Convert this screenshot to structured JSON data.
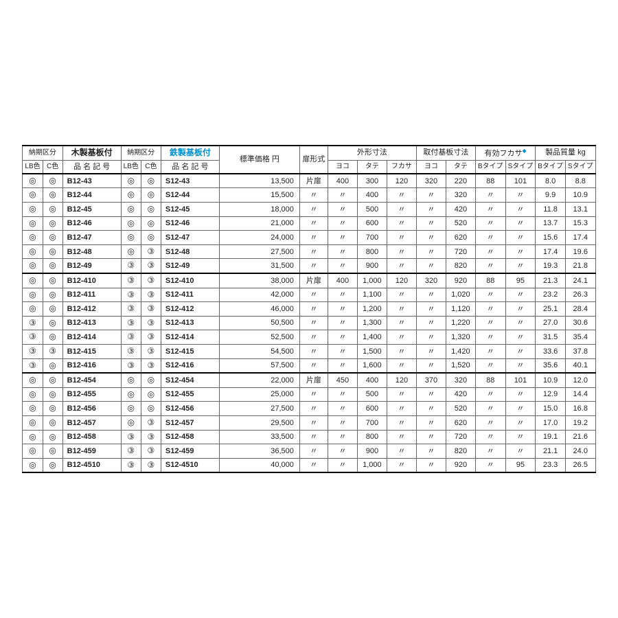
{
  "marks": {
    "dbl": "◎",
    "c3": "③",
    "ditto": "〃"
  },
  "headers": {
    "delivery": "納期区分",
    "wood": "木製基板付",
    "steel": "鉄製基板付",
    "lb": "LB色",
    "c": "C色",
    "model": "品 名 記 号",
    "price": "標準価格 円",
    "door": "扉形式",
    "outer": "外形寸法",
    "mount": "取付基板寸法",
    "effDepth": "有効フカサ",
    "mass": "製品質量 kg",
    "yoko": "ヨコ",
    "tate": "タテ",
    "fukasa": "フカサ",
    "btype": "Bタイプ",
    "stype": "Sタイプ",
    "single": "片扉"
  },
  "rows": [
    {
      "g": 1,
      "lb1": "◎",
      "c1": "◎",
      "b": "B12-43",
      "lb2": "◎",
      "c2": "◎",
      "s": "S12-43",
      "price": "13,500",
      "door": "片扉",
      "oy": "400",
      "ot": "300",
      "of": "120",
      "my": "320",
      "mt": "220",
      "eb": "88",
      "es": "101",
      "mb": "8.0",
      "ms": "8.8"
    },
    {
      "g": 1,
      "lb1": "◎",
      "c1": "◎",
      "b": "B12-44",
      "lb2": "◎",
      "c2": "◎",
      "s": "S12-44",
      "price": "15,500",
      "door": "〃",
      "oy": "〃",
      "ot": "400",
      "of": "〃",
      "my": "〃",
      "mt": "320",
      "eb": "〃",
      "es": "〃",
      "mb": "9.9",
      "ms": "10.9"
    },
    {
      "g": 1,
      "lb1": "◎",
      "c1": "◎",
      "b": "B12-45",
      "lb2": "◎",
      "c2": "◎",
      "s": "S12-45",
      "price": "18,000",
      "door": "〃",
      "oy": "〃",
      "ot": "500",
      "of": "〃",
      "my": "〃",
      "mt": "420",
      "eb": "〃",
      "es": "〃",
      "mb": "11.8",
      "ms": "13.1"
    },
    {
      "g": 1,
      "lb1": "◎",
      "c1": "◎",
      "b": "B12-46",
      "lb2": "◎",
      "c2": "◎",
      "s": "S12-46",
      "price": "21,000",
      "door": "〃",
      "oy": "〃",
      "ot": "600",
      "of": "〃",
      "my": "〃",
      "mt": "520",
      "eb": "〃",
      "es": "〃",
      "mb": "13.7",
      "ms": "15.3"
    },
    {
      "g": 1,
      "lb1": "◎",
      "c1": "◎",
      "b": "B12-47",
      "lb2": "◎",
      "c2": "◎",
      "s": "S12-47",
      "price": "24,000",
      "door": "〃",
      "oy": "〃",
      "ot": "700",
      "of": "〃",
      "my": "〃",
      "mt": "620",
      "eb": "〃",
      "es": "〃",
      "mb": "15.6",
      "ms": "17.4"
    },
    {
      "g": 1,
      "lb1": "◎",
      "c1": "◎",
      "b": "B12-48",
      "lb2": "◎",
      "c2": "③",
      "s": "S12-48",
      "price": "27,500",
      "door": "〃",
      "oy": "〃",
      "ot": "800",
      "of": "〃",
      "my": "〃",
      "mt": "720",
      "eb": "〃",
      "es": "〃",
      "mb": "17.4",
      "ms": "19.6"
    },
    {
      "g": 1,
      "lb1": "◎",
      "c1": "◎",
      "b": "B12-49",
      "lb2": "③",
      "c2": "③",
      "s": "S12-49",
      "price": "31,500",
      "door": "〃",
      "oy": "〃",
      "ot": "900",
      "of": "〃",
      "my": "〃",
      "mt": "820",
      "eb": "〃",
      "es": "〃",
      "mb": "19.3",
      "ms": "21.8"
    },
    {
      "g": 2,
      "lb1": "◎",
      "c1": "◎",
      "b": "B12-410",
      "lb2": "③",
      "c2": "③",
      "s": "S12-410",
      "price": "38,000",
      "door": "片扉",
      "oy": "400",
      "ot": "1,000",
      "of": "120",
      "my": "320",
      "mt": "920",
      "eb": "88",
      "es": "95",
      "mb": "21.3",
      "ms": "24.1"
    },
    {
      "g": 2,
      "lb1": "◎",
      "c1": "◎",
      "b": "B12-411",
      "lb2": "③",
      "c2": "③",
      "s": "S12-411",
      "price": "42,000",
      "door": "〃",
      "oy": "〃",
      "ot": "1,100",
      "of": "〃",
      "my": "〃",
      "mt": "1,020",
      "eb": "〃",
      "es": "〃",
      "mb": "23.2",
      "ms": "26.3"
    },
    {
      "g": 2,
      "lb1": "◎",
      "c1": "◎",
      "b": "B12-412",
      "lb2": "③",
      "c2": "③",
      "s": "S12-412",
      "price": "46,000",
      "door": "〃",
      "oy": "〃",
      "ot": "1,200",
      "of": "〃",
      "my": "〃",
      "mt": "1,120",
      "eb": "〃",
      "es": "〃",
      "mb": "25.1",
      "ms": "28.4"
    },
    {
      "g": 2,
      "lb1": "③",
      "c1": "◎",
      "b": "B12-413",
      "lb2": "③",
      "c2": "③",
      "s": "S12-413",
      "price": "50,500",
      "door": "〃",
      "oy": "〃",
      "ot": "1,300",
      "of": "〃",
      "my": "〃",
      "mt": "1,220",
      "eb": "〃",
      "es": "〃",
      "mb": "27.0",
      "ms": "30.6"
    },
    {
      "g": 2,
      "lb1": "③",
      "c1": "◎",
      "b": "B12-414",
      "lb2": "③",
      "c2": "③",
      "s": "S12-414",
      "price": "52,500",
      "door": "〃",
      "oy": "〃",
      "ot": "1,400",
      "of": "〃",
      "my": "〃",
      "mt": "1,320",
      "eb": "〃",
      "es": "〃",
      "mb": "31.5",
      "ms": "35.4"
    },
    {
      "g": 2,
      "lb1": "③",
      "c1": "③",
      "b": "B12-415",
      "lb2": "③",
      "c2": "③",
      "s": "S12-415",
      "price": "54,500",
      "door": "〃",
      "oy": "〃",
      "ot": "1,500",
      "of": "〃",
      "my": "〃",
      "mt": "1,420",
      "eb": "〃",
      "es": "〃",
      "mb": "33.6",
      "ms": "37.8"
    },
    {
      "g": 2,
      "lb1": "③",
      "c1": "◎",
      "b": "B12-416",
      "lb2": "③",
      "c2": "③",
      "s": "S12-416",
      "price": "57,500",
      "door": "〃",
      "oy": "〃",
      "ot": "1,600",
      "of": "〃",
      "my": "〃",
      "mt": "1,520",
      "eb": "〃",
      "es": "〃",
      "mb": "35.6",
      "ms": "40.1"
    },
    {
      "g": 3,
      "lb1": "◎",
      "c1": "◎",
      "b": "B12-454",
      "lb2": "◎",
      "c2": "◎",
      "s": "S12-454",
      "price": "22,000",
      "door": "片扉",
      "oy": "450",
      "ot": "400",
      "of": "120",
      "my": "370",
      "mt": "320",
      "eb": "88",
      "es": "101",
      "mb": "10.9",
      "ms": "12.0"
    },
    {
      "g": 3,
      "lb1": "◎",
      "c1": "◎",
      "b": "B12-455",
      "lb2": "◎",
      "c2": "◎",
      "s": "S12-455",
      "price": "25,000",
      "door": "〃",
      "oy": "〃",
      "ot": "500",
      "of": "〃",
      "my": "〃",
      "mt": "420",
      "eb": "〃",
      "es": "〃",
      "mb": "12.9",
      "ms": "14.4"
    },
    {
      "g": 3,
      "lb1": "◎",
      "c1": "◎",
      "b": "B12-456",
      "lb2": "◎",
      "c2": "◎",
      "s": "S12-456",
      "price": "27,500",
      "door": "〃",
      "oy": "〃",
      "ot": "600",
      "of": "〃",
      "my": "〃",
      "mt": "520",
      "eb": "〃",
      "es": "〃",
      "mb": "15.0",
      "ms": "16.8"
    },
    {
      "g": 3,
      "lb1": "◎",
      "c1": "◎",
      "b": "B12-457",
      "lb2": "◎",
      "c2": "③",
      "s": "S12-457",
      "price": "29,500",
      "door": "〃",
      "oy": "〃",
      "ot": "700",
      "of": "〃",
      "my": "〃",
      "mt": "620",
      "eb": "〃",
      "es": "〃",
      "mb": "17.0",
      "ms": "19.2"
    },
    {
      "g": 3,
      "lb1": "◎",
      "c1": "◎",
      "b": "B12-458",
      "lb2": "③",
      "c2": "③",
      "s": "S12-458",
      "price": "33,500",
      "door": "〃",
      "oy": "〃",
      "ot": "800",
      "of": "〃",
      "my": "〃",
      "mt": "720",
      "eb": "〃",
      "es": "〃",
      "mb": "19.1",
      "ms": "21.6"
    },
    {
      "g": 3,
      "lb1": "◎",
      "c1": "◎",
      "b": "B12-459",
      "lb2": "③",
      "c2": "③",
      "s": "S12-459",
      "price": "36,500",
      "door": "〃",
      "oy": "〃",
      "ot": "900",
      "of": "〃",
      "my": "〃",
      "mt": "820",
      "eb": "〃",
      "es": "〃",
      "mb": "21.1",
      "ms": "24.0"
    },
    {
      "g": 3,
      "lb1": "◎",
      "c1": "◎",
      "b": "B12-4510",
      "lb2": "③",
      "c2": "③",
      "s": "S12-4510",
      "price": "40,000",
      "door": "〃",
      "oy": "〃",
      "ot": "1,000",
      "of": "〃",
      "my": "〃",
      "mt": "920",
      "eb": "〃",
      "es": "95",
      "mb": "23.3",
      "ms": "26.5"
    }
  ],
  "style": {
    "font_family": "Hiragino Kaku Gothic Pro, Meiryo, sans-serif",
    "font_size_pt": 11,
    "header_bold_size_pt": 12,
    "small_size_pt": 10,
    "text_color": "#222222",
    "border_color": "#666666",
    "thick_border_color": "#000000",
    "steel_color": "#0091d0",
    "diamond_color": "#0091d0",
    "background": "#ffffff"
  }
}
